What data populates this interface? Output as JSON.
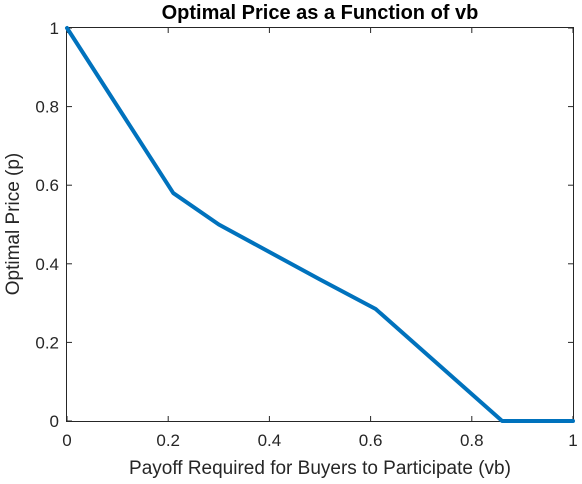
{
  "chart_data": {
    "type": "line",
    "title": "Optimal Price as a Function of vb",
    "xlabel": "Payoff Required for Buyers to Participate (vb)",
    "ylabel": "Optimal Price (p)",
    "xlim": [
      0,
      1
    ],
    "ylim": [
      0,
      1
    ],
    "xticks": [
      0,
      0.2,
      0.4,
      0.6,
      0.8,
      1
    ],
    "xtick_labels": [
      "0",
      "0.2",
      "0.4",
      "0.6",
      "0.8",
      "1"
    ],
    "yticks": [
      0,
      0.2,
      0.4,
      0.6,
      0.8,
      1
    ],
    "ytick_labels": [
      "0",
      "0.2",
      "0.4",
      "0.6",
      "0.8",
      "1"
    ],
    "grid": false,
    "series": [
      {
        "color": "#0072BD",
        "x": [
          0,
          0.21,
          0.3,
          0.4,
          0.5,
          0.61,
          0.86,
          1.0
        ],
        "y": [
          1,
          0.58,
          0.5,
          0.43,
          0.36,
          0.285,
          0,
          0
        ]
      }
    ]
  }
}
